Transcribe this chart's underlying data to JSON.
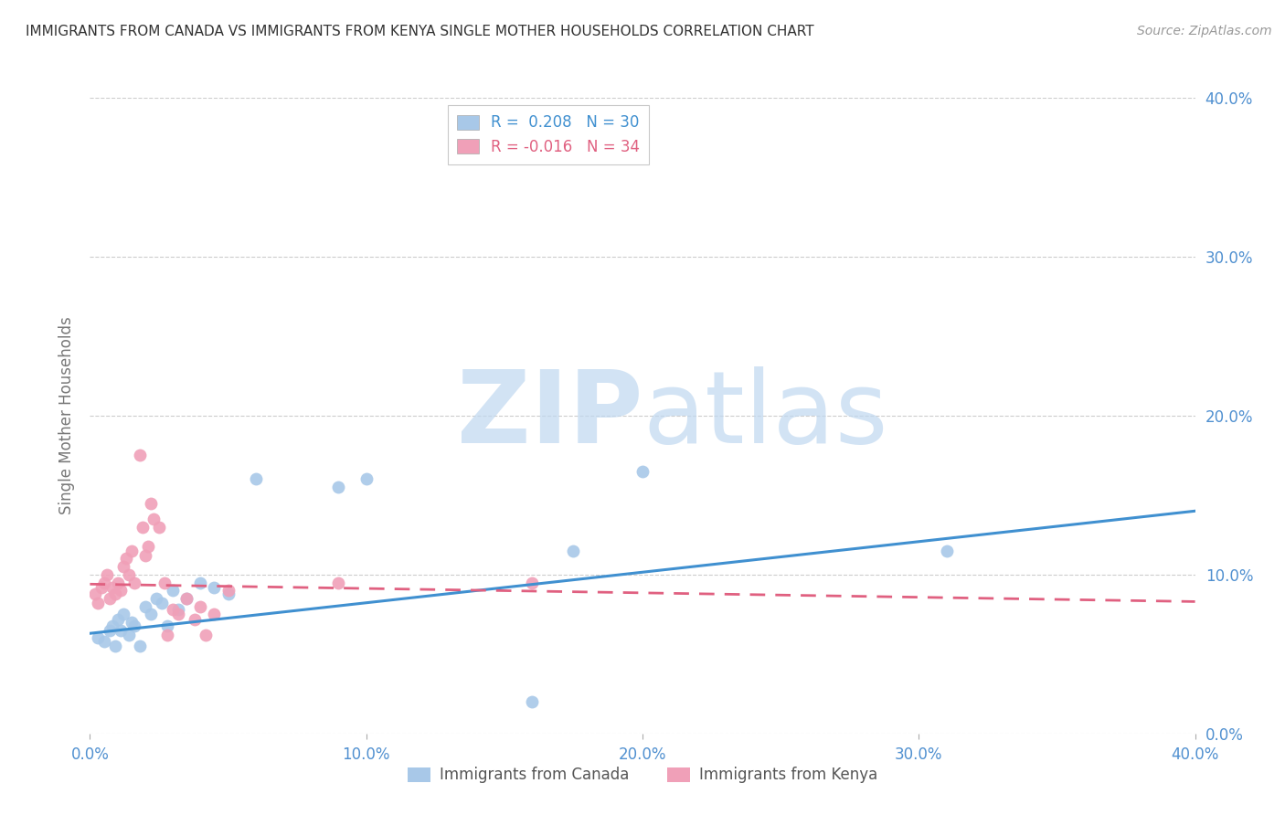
{
  "title": "IMMIGRANTS FROM CANADA VS IMMIGRANTS FROM KENYA SINGLE MOTHER HOUSEHOLDS CORRELATION CHART",
  "source": "Source: ZipAtlas.com",
  "ylabel": "Single Mother Households",
  "xlim": [
    0.0,
    0.4
  ],
  "ylim": [
    0.0,
    0.4
  ],
  "yticks": [
    0.0,
    0.1,
    0.2,
    0.3,
    0.4
  ],
  "xticks": [
    0.0,
    0.1,
    0.2,
    0.3,
    0.4
  ],
  "canada_R": 0.208,
  "canada_N": 30,
  "kenya_R": -0.016,
  "kenya_N": 34,
  "canada_color": "#a8c8e8",
  "kenya_color": "#f0a0b8",
  "canada_line_color": "#4090d0",
  "kenya_line_color": "#e06080",
  "background_color": "#ffffff",
  "title_color": "#333333",
  "axis_label_color": "#5090d0",
  "watermark_zip_color": "#c0d8f0",
  "watermark_atlas_color": "#c0d8f0",
  "canada_line_start_y": 0.063,
  "canada_line_end_y": 0.14,
  "kenya_line_start_y": 0.094,
  "kenya_line_end_y": 0.083,
  "canada_x": [
    0.003,
    0.005,
    0.007,
    0.008,
    0.009,
    0.01,
    0.011,
    0.012,
    0.014,
    0.015,
    0.016,
    0.018,
    0.02,
    0.022,
    0.024,
    0.026,
    0.028,
    0.03,
    0.032,
    0.035,
    0.04,
    0.045,
    0.05,
    0.06,
    0.09,
    0.1,
    0.16,
    0.175,
    0.2,
    0.31
  ],
  "canada_y": [
    0.06,
    0.058,
    0.065,
    0.068,
    0.055,
    0.072,
    0.065,
    0.075,
    0.062,
    0.07,
    0.068,
    0.055,
    0.08,
    0.075,
    0.085,
    0.082,
    0.068,
    0.09,
    0.078,
    0.085,
    0.095,
    0.092,
    0.088,
    0.16,
    0.155,
    0.16,
    0.02,
    0.115,
    0.165,
    0.115
  ],
  "kenya_x": [
    0.002,
    0.003,
    0.004,
    0.005,
    0.006,
    0.007,
    0.008,
    0.009,
    0.01,
    0.011,
    0.012,
    0.013,
    0.014,
    0.015,
    0.016,
    0.018,
    0.019,
    0.02,
    0.021,
    0.022,
    0.023,
    0.025,
    0.027,
    0.028,
    0.03,
    0.032,
    0.035,
    0.038,
    0.04,
    0.042,
    0.045,
    0.05,
    0.09,
    0.16
  ],
  "kenya_y": [
    0.088,
    0.082,
    0.092,
    0.095,
    0.1,
    0.085,
    0.092,
    0.088,
    0.095,
    0.09,
    0.105,
    0.11,
    0.1,
    0.115,
    0.095,
    0.175,
    0.13,
    0.112,
    0.118,
    0.145,
    0.135,
    0.13,
    0.095,
    0.062,
    0.078,
    0.075,
    0.085,
    0.072,
    0.08,
    0.062,
    0.075,
    0.09,
    0.095,
    0.095
  ]
}
